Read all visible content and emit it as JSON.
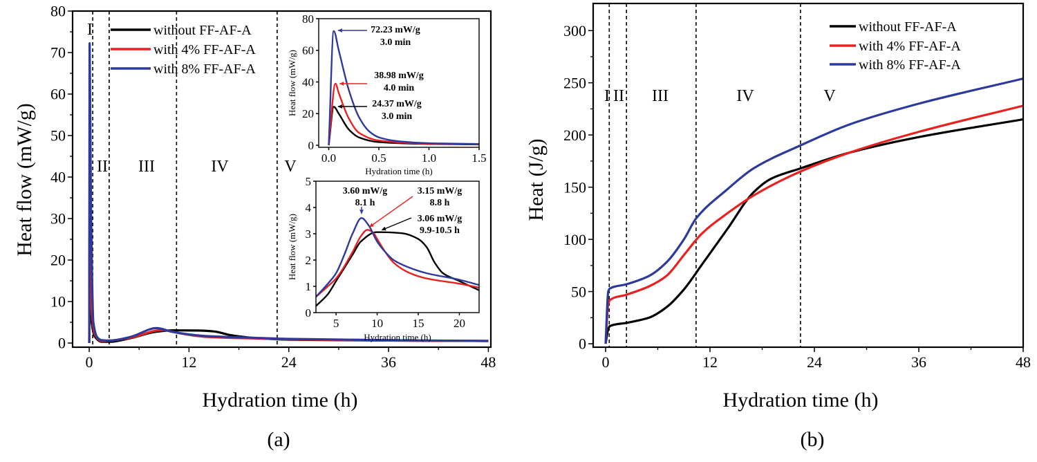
{
  "colors": {
    "without": "#000000",
    "with4": "#e8211f",
    "with8": "#2b3a9b",
    "axis": "#000000"
  },
  "chart_data": [
    {
      "id": "a",
      "type": "line",
      "panel_label": "(a)",
      "xlabel": "Hydration time (h)",
      "ylabel": "Heat flow (mW/g)",
      "xlim": [
        -2,
        48.3
      ],
      "ylim": [
        -1,
        80
      ],
      "xticks": [
        "0",
        "12",
        "24",
        "36",
        "48"
      ],
      "xtick_values": [
        0,
        12,
        24,
        36,
        48
      ],
      "yticks": [
        "0",
        "10",
        "20",
        "30",
        "40",
        "50",
        "60",
        "70",
        "80"
      ],
      "ytick_values": [
        0,
        10,
        20,
        30,
        40,
        50,
        60,
        70,
        80
      ],
      "legend_position": "top-left",
      "grid": false,
      "region_boundaries": [
        0.42,
        2.4,
        10.5,
        22.6
      ],
      "region_labels": [
        "I",
        "II",
        "III",
        "IV",
        "V"
      ],
      "series": [
        {
          "name": "without  FF-AF-A",
          "color_key": "without",
          "points": [
            [
              0,
              0
            ],
            [
              0.05,
              24.37
            ],
            [
              0.3,
              5
            ],
            [
              0.7,
              1.5
            ],
            [
              1.5,
              0.3
            ],
            [
              2.5,
              0.3
            ],
            [
              5,
              1.2
            ],
            [
              8,
              2.7
            ],
            [
              10,
              3.06
            ],
            [
              13,
              3.02
            ],
            [
              15,
              2.8
            ],
            [
              17,
              1.9
            ],
            [
              20,
              1.2
            ],
            [
              24,
              0.8
            ],
            [
              36,
              0.6
            ],
            [
              48,
              0.5
            ]
          ]
        },
        {
          "name": "with 4% FF-AF-A",
          "color_key": "with4",
          "points": [
            [
              0,
              0
            ],
            [
              0.067,
              38.98
            ],
            [
              0.3,
              8
            ],
            [
              0.7,
              2
            ],
            [
              1.5,
              0.5
            ],
            [
              2.5,
              0.6
            ],
            [
              5,
              1.3
            ],
            [
              8.8,
              3.15
            ],
            [
              11,
              2.3
            ],
            [
              14,
              1.5
            ],
            [
              20,
              1.1
            ],
            [
              24,
              0.9
            ],
            [
              36,
              0.6
            ],
            [
              48,
              0.5
            ]
          ]
        },
        {
          "name": "with 8% FF-AF-A",
          "color_key": "with8",
          "points": [
            [
              0,
              0
            ],
            [
              0.05,
              72.23
            ],
            [
              0.2,
              35
            ],
            [
              0.5,
              5
            ],
            [
              1,
              1.3
            ],
            [
              1.5,
              0.7
            ],
            [
              2.5,
              0.6
            ],
            [
              5,
              1.5
            ],
            [
              8.1,
              3.6
            ],
            [
              10,
              2.7
            ],
            [
              14,
              1.7
            ],
            [
              20,
              1.25
            ],
            [
              24,
              1.0
            ],
            [
              36,
              0.7
            ],
            [
              48,
              0.5
            ]
          ]
        }
      ]
    },
    {
      "id": "a_inset_early",
      "type": "line",
      "xlabel": "Hydration time (h)",
      "ylabel": "Heat flow (mW/g)",
      "xlim": [
        -0.1,
        1.5
      ],
      "ylim": [
        -1.3,
        80
      ],
      "xticks": [
        "0.0",
        "0.5",
        "1.0",
        "1.5"
      ],
      "xtick_values": [
        0,
        0.5,
        1.0,
        1.5
      ],
      "yticks": [
        "0",
        "20",
        "40",
        "60",
        "80"
      ],
      "ytick_values": [
        0,
        20,
        40,
        60,
        80
      ],
      "series": [
        {
          "color_key": "without",
          "points": [
            [
              0,
              0
            ],
            [
              0.05,
              24.37
            ],
            [
              0.1,
              20
            ],
            [
              0.2,
              10
            ],
            [
              0.3,
              5
            ],
            [
              0.5,
              2
            ],
            [
              1,
              0.8
            ],
            [
              1.5,
              0.5
            ]
          ]
        },
        {
          "color_key": "with4",
          "points": [
            [
              0,
              0
            ],
            [
              0.067,
              38.98
            ],
            [
              0.1,
              33
            ],
            [
              0.2,
              17
            ],
            [
              0.3,
              8
            ],
            [
              0.5,
              3
            ],
            [
              1,
              1
            ],
            [
              1.5,
              0.6
            ]
          ]
        },
        {
          "color_key": "with8",
          "points": [
            [
              0,
              0
            ],
            [
              0.05,
              72.23
            ],
            [
              0.1,
              60
            ],
            [
              0.2,
              35
            ],
            [
              0.3,
              18
            ],
            [
              0.4,
              9
            ],
            [
              0.5,
              5
            ],
            [
              0.7,
              2.5
            ],
            [
              1,
              1.3
            ],
            [
              1.5,
              0.8
            ]
          ]
        }
      ],
      "annotations": [
        {
          "color_key": "with8",
          "lines": [
            "72.23 mW/g",
            "3.0 min"
          ],
          "point": [
            0.05,
            72.23
          ]
        },
        {
          "color_key": "with4",
          "lines": [
            "38.98 mW/g",
            "4.0 min"
          ],
          "point": [
            0.067,
            38.98
          ]
        },
        {
          "color_key": "without",
          "lines": [
            "24.37 mW/g",
            "3.0 min"
          ],
          "point": [
            0.05,
            24.37
          ]
        }
      ]
    },
    {
      "id": "a_inset_late",
      "type": "line",
      "xlabel": "Hydration time (h)",
      "ylabel": "Heat flow (mW/g)",
      "xlim": [
        2.55,
        22.4
      ],
      "ylim": [
        0,
        5
      ],
      "xticks": [
        "5",
        "10",
        "15",
        "20"
      ],
      "xtick_values": [
        5,
        10,
        15,
        20
      ],
      "yticks": [
        "0",
        "1",
        "2",
        "3",
        "4",
        "5"
      ],
      "ytick_values": [
        0,
        1,
        2,
        3,
        4,
        5
      ],
      "series": [
        {
          "color_key": "without",
          "points": [
            [
              2.55,
              0.25
            ],
            [
              4,
              0.7
            ],
            [
              5,
              1.2
            ],
            [
              7,
              2.2
            ],
            [
              8,
              2.7
            ],
            [
              9.9,
              3.06
            ],
            [
              10.5,
              3.06
            ],
            [
              13,
              3.02
            ],
            [
              15,
              2.8
            ],
            [
              16,
              2.5
            ],
            [
              17,
              1.9
            ],
            [
              18,
              1.5
            ],
            [
              20,
              1.2
            ],
            [
              22.4,
              0.85
            ]
          ]
        },
        {
          "color_key": "with4",
          "points": [
            [
              2.55,
              0.6
            ],
            [
              4,
              1.0
            ],
            [
              5,
              1.3
            ],
            [
              7,
              2.3
            ],
            [
              8,
              2.9
            ],
            [
              8.8,
              3.15
            ],
            [
              9.5,
              3.05
            ],
            [
              10,
              2.8
            ],
            [
              11,
              2.3
            ],
            [
              12,
              1.9
            ],
            [
              14,
              1.5
            ],
            [
              16,
              1.3
            ],
            [
              20,
              1.1
            ],
            [
              22.4,
              0.95
            ]
          ]
        },
        {
          "color_key": "with8",
          "points": [
            [
              2.55,
              0.6
            ],
            [
              4,
              1.1
            ],
            [
              5,
              1.5
            ],
            [
              6,
              2.2
            ],
            [
              7,
              3.0
            ],
            [
              8.1,
              3.6
            ],
            [
              9,
              3.3
            ],
            [
              10,
              2.7
            ],
            [
              11,
              2.3
            ],
            [
              12,
              2.0
            ],
            [
              14,
              1.7
            ],
            [
              16,
              1.5
            ],
            [
              20,
              1.25
            ],
            [
              22.4,
              1.05
            ]
          ]
        }
      ],
      "annotations": [
        {
          "color_key": "with8",
          "lines": [
            "3.60 mW/g",
            "8.1 h"
          ],
          "point": [
            8.1,
            3.6
          ]
        },
        {
          "color_key": "with4",
          "lines": [
            "3.15 mW/g",
            "8.8 h"
          ],
          "point": [
            8.8,
            3.15
          ]
        },
        {
          "color_key": "without",
          "lines": [
            "3.06 mW/g",
            "9.9-10.5 h"
          ],
          "point": [
            10.2,
            3.06
          ]
        }
      ]
    },
    {
      "id": "b",
      "type": "line",
      "panel_label": "(b)",
      "xlabel": "Hydration time (h)",
      "ylabel": "Heat  (J/g)",
      "xlim": [
        -1.43,
        48
      ],
      "ylim": [
        -3.3,
        326
      ],
      "xticks": [
        "0",
        "12",
        "24",
        "36",
        "48"
      ],
      "xtick_values": [
        0,
        12,
        24,
        36,
        48
      ],
      "yticks": [
        "0",
        "50",
        "100",
        "150",
        "200",
        "250",
        "300"
      ],
      "ytick_values": [
        0,
        50,
        100,
        150,
        200,
        250,
        300
      ],
      "legend_position": "top-right",
      "grid": false,
      "region_boundaries": [
        0.42,
        2.4,
        10.4,
        22.4
      ],
      "region_labels": [
        "I",
        "II",
        "III",
        "IV",
        "V"
      ],
      "series": [
        {
          "name": "without  FF-AF-A",
          "color_key": "without",
          "points": [
            [
              0,
              0
            ],
            [
              0.3,
              14
            ],
            [
              0.5,
              17
            ],
            [
              2.4,
              20
            ],
            [
              5,
              25
            ],
            [
              7,
              35
            ],
            [
              9,
              52
            ],
            [
              11,
              75
            ],
            [
              14,
              110
            ],
            [
              17,
              145
            ],
            [
              19,
              158
            ],
            [
              22.4,
              168
            ],
            [
              28,
              183
            ],
            [
              36,
              198
            ],
            [
              48,
              215
            ]
          ]
        },
        {
          "name": "with 4% FF-AF-A",
          "color_key": "with4",
          "points": [
            [
              0,
              0
            ],
            [
              0.3,
              38
            ],
            [
              0.5,
              42
            ],
            [
              2.4,
              47
            ],
            [
              5,
              55
            ],
            [
              7,
              65
            ],
            [
              9,
              85
            ],
            [
              11,
              105
            ],
            [
              14,
              125
            ],
            [
              17,
              142
            ],
            [
              22.4,
              165
            ],
            [
              28,
              183
            ],
            [
              36,
              203
            ],
            [
              48,
              228
            ]
          ]
        },
        {
          "name": "with 8% FF-AF-A",
          "color_key": "with8",
          "points": [
            [
              0,
              0
            ],
            [
              0.3,
              50
            ],
            [
              0.5,
              53
            ],
            [
              2.4,
              57
            ],
            [
              5,
              65
            ],
            [
              7,
              78
            ],
            [
              9,
              100
            ],
            [
              10.4,
              120
            ],
            [
              14,
              148
            ],
            [
              17,
              168
            ],
            [
              22.4,
              190
            ],
            [
              28,
              210
            ],
            [
              36,
              230
            ],
            [
              48,
              254
            ]
          ]
        }
      ]
    }
  ]
}
